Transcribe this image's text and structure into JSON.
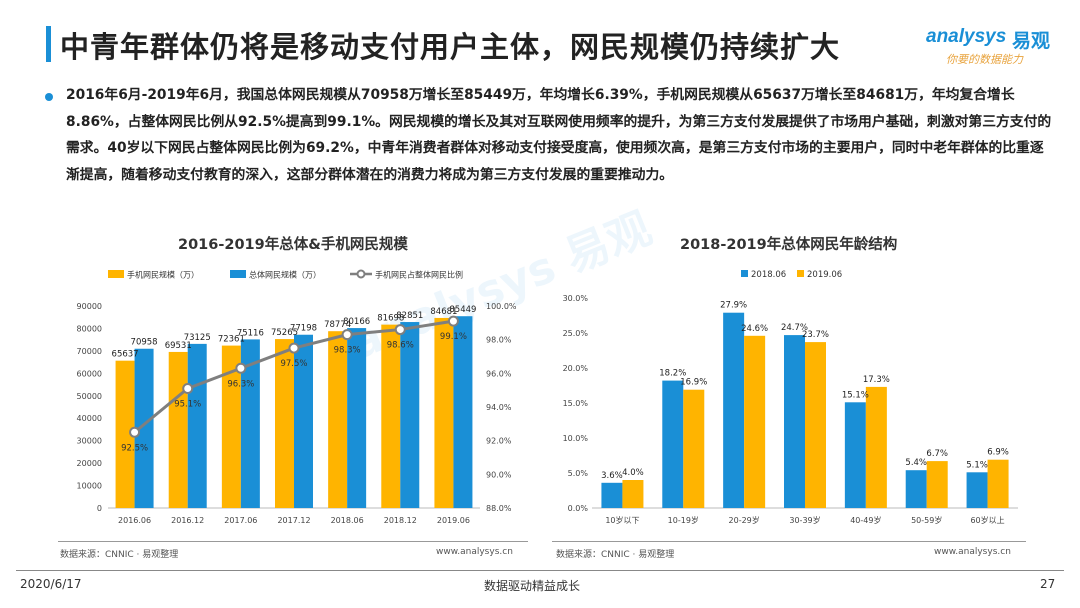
{
  "header": {
    "title": "中青年群体仍将是移动支付用户主体，网民规模仍持续扩大",
    "logo_en": "analysys",
    "logo_cn": "易观",
    "logo_slogan": "你要的数据能力"
  },
  "body_text": "2016年6月-2019年6月，我国总体网民规模从70958万增长至85449万，年均增长6.39%，手机网民规模从65637万增长至84681万，年均复合增长8.86%，占整体网民比例从92.5%提高到99.1%。网民规模的增长及其对互联网使用频率的提升，为第三方支付发展提供了市场用户基础，刺激对第三方支付的需求。40岁以下网民占整体网民比例为69.2%，中青年消费者群体对移动支付接受度高，使用频次高，是第三方支付市场的主要用户，同时中老年群体的比重逐渐提高，随着移动支付教育的深入，这部分群体潜在的消费力将成为第三方支付发展的重要推动力。",
  "colors": {
    "accent": "#1a8fd6",
    "yellow": "#ffb400",
    "blue": "#1a8fd6",
    "line": "#7f7f7f"
  },
  "chart_data": [
    {
      "type": "bar",
      "title": "2016-2019年总体&手机网民规模",
      "categories": [
        "2016.06",
        "2016.12",
        "2017.06",
        "2017.12",
        "2018.06",
        "2018.12",
        "2019.06"
      ],
      "series": [
        {
          "name": "手机网民规模（万）",
          "values": [
            65637,
            69531,
            72361,
            75265,
            78774,
            81698,
            84681
          ],
          "labels": [
            "65637",
            "69531",
            "72361",
            "75265",
            "78774",
            "81698",
            "84681"
          ]
        },
        {
          "name": "总体网民规模（万）",
          "values": [
            70958,
            73125,
            75116,
            77198,
            80166,
            82851,
            85449
          ],
          "labels": [
            "70958",
            "73125",
            "75116",
            "77198",
            "80166",
            "82851",
            "85449"
          ]
        },
        {
          "name": "手机网民占整体网民比例",
          "type": "line",
          "axis": "right",
          "values": [
            92.5,
            95.1,
            96.3,
            97.5,
            98.3,
            98.6,
            99.1
          ],
          "labels": [
            "92.5%",
            "95.1%",
            "96.3%",
            "97.5%",
            "98.3%",
            "98.6%",
            "99.1%"
          ]
        }
      ],
      "y_left": {
        "min": 0,
        "max": 90000,
        "ticks": [
          "0",
          "10000",
          "20000",
          "30000",
          "40000",
          "50000",
          "60000",
          "70000",
          "80000",
          "90000"
        ]
      },
      "y_right": {
        "min": 88.0,
        "max": 100.0,
        "ticks": [
          "88.0%",
          "90.0%",
          "92.0%",
          "94.0%",
          "96.0%",
          "98.0%",
          "100.0%"
        ]
      },
      "legend_position": "top"
    },
    {
      "type": "bar",
      "title": "2018-2019年总体网民年龄结构",
      "categories": [
        "10岁以下",
        "10-19岁",
        "20-29岁",
        "30-39岁",
        "40-49岁",
        "50-59岁",
        "60岁以上"
      ],
      "series": [
        {
          "name": "2018.06",
          "values": [
            3.6,
            18.2,
            27.9,
            24.7,
            15.1,
            5.4,
            5.1
          ],
          "labels": [
            "3.6%",
            "18.2%",
            "27.9%",
            "24.7%",
            "15.1%",
            "5.4%",
            "5.1%"
          ]
        },
        {
          "name": "2019.06",
          "values": [
            4.0,
            16.9,
            24.6,
            23.7,
            17.3,
            6.7,
            6.9
          ],
          "labels": [
            "4.0%",
            "16.9%",
            "24.6%",
            "23.7%",
            "17.3%",
            "6.7%",
            "6.9%"
          ]
        }
      ],
      "y": {
        "min": 0,
        "max": 30,
        "ticks": [
          "0.0%",
          "5.0%",
          "10.0%",
          "15.0%",
          "20.0%",
          "25.0%",
          "30.0%"
        ]
      },
      "legend_position": "top"
    }
  ],
  "sources": {
    "left": "数据来源：CNNIC · 易观整理",
    "left_url": "www.analysys.cn",
    "right": "数据来源：CNNIC · 易观整理",
    "right_url": "www.analysys.cn"
  },
  "footer": {
    "date": "2020/6/17",
    "center": "数据驱动精益成长",
    "page": "27"
  }
}
